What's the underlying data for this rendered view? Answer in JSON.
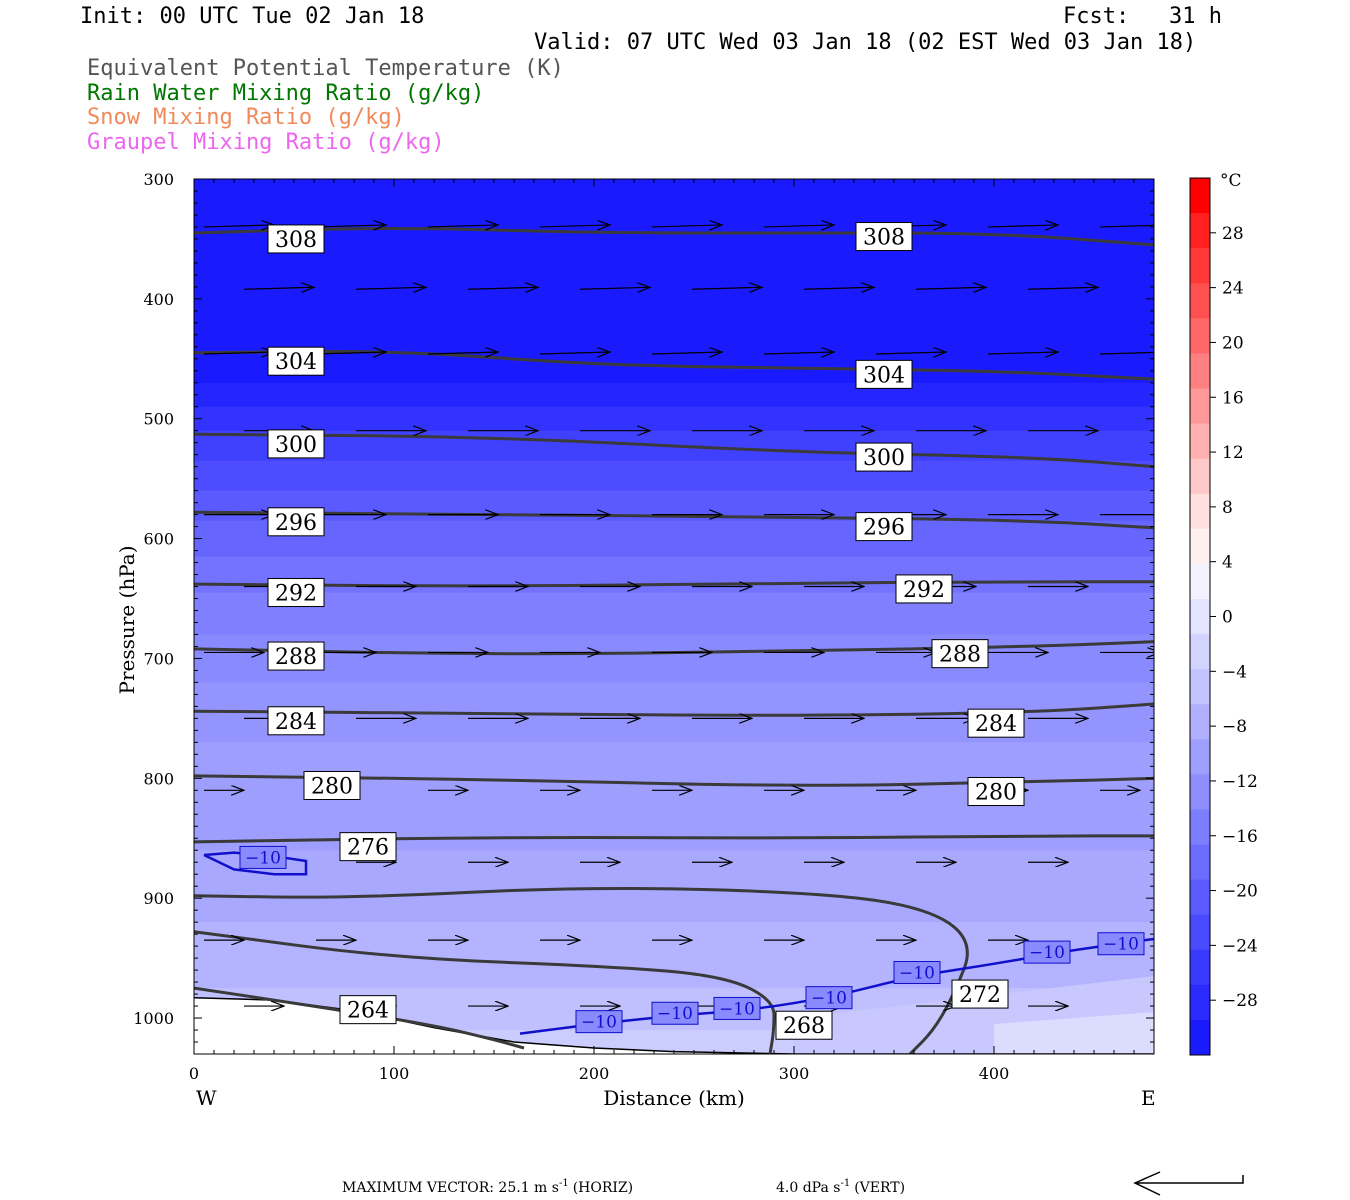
{
  "header": {
    "init": "Init: 00 UTC Tue 02 Jan 18",
    "fcst": "Fcst:   31 h",
    "valid": "Valid: 07 UTC Wed 03 Jan 18 (02 EST Wed 03 Jan 18)"
  },
  "legend_titles": [
    {
      "text": "Equivalent Potential Temperature (K)",
      "color": "#555555"
    },
    {
      "text": "Rain Water Mixing Ratio (g/kg)",
      "color": "#007700"
    },
    {
      "text": "Snow Mixing Ratio (g/kg)",
      "color": "#f08a5a"
    },
    {
      "text": "Graupel Mixing Ratio (g/kg)",
      "color": "#ee66ee"
    }
  ],
  "footer": {
    "max_vector": "MAXIMUM VECTOR:  25.1 m s",
    "horiz": "(HORIZ)",
    "vert_value": "4.0 dPa s",
    "vert": "(VERT)",
    "exp": "-1"
  },
  "chart_data": {
    "type": "contour",
    "xlabel": "Distance (km)",
    "ylabel": "Pressure (hPa)",
    "x_range": [
      0,
      480
    ],
    "y_range": [
      300,
      1030
    ],
    "x_ticks": [
      0,
      100,
      200,
      300,
      400
    ],
    "y_ticks": [
      300,
      400,
      500,
      600,
      700,
      800,
      900,
      1000
    ],
    "x_end_labels": {
      "left": "W",
      "right": "E"
    },
    "colorbar": {
      "unit": "°C",
      "tick_labels": [
        "28",
        "24",
        "20",
        "16",
        "12",
        "8",
        "4",
        "0",
        "−4",
        "−8",
        "−12",
        "−16",
        "−20",
        "−24",
        "−28"
      ],
      "colors": [
        "#1a1aff",
        "#2a2aff",
        "#3a3aff",
        "#4a4aff",
        "#5b5bff",
        "#6c6cff",
        "#7d7dff",
        "#8e8eff",
        "#9f9fff",
        "#b0b0ff",
        "#c2c2ff",
        "#d3d3ff",
        "#e4e4ff",
        "#f2f2ff",
        "#fff0f0",
        "#ffe0e0",
        "#ffc8c8",
        "#ffb0b0",
        "#ff9898",
        "#ff8080",
        "#ff6868",
        "#ff5050",
        "#ff3838",
        "#ff2020",
        "#ff0000"
      ]
    },
    "theta_e_contours": [
      {
        "label": "308",
        "points": [
          [
            0,
            345
          ],
          [
            100,
            340
          ],
          [
            200,
            345
          ],
          [
            300,
            345
          ],
          [
            400,
            345
          ],
          [
            480,
            355
          ]
        ]
      },
      {
        "label": "304",
        "points": [
          [
            0,
            445
          ],
          [
            100,
            443
          ],
          [
            200,
            455
          ],
          [
            300,
            458
          ],
          [
            400,
            460
          ],
          [
            480,
            467
          ]
        ]
      },
      {
        "label": "300",
        "points": [
          [
            0,
            513
          ],
          [
            150,
            515
          ],
          [
            300,
            528
          ],
          [
            420,
            532
          ],
          [
            480,
            540
          ]
        ]
      },
      {
        "label": "296",
        "points": [
          [
            0,
            578
          ],
          [
            150,
            580
          ],
          [
            300,
            582
          ],
          [
            420,
            585
          ],
          [
            480,
            591
          ]
        ]
      },
      {
        "label": "292",
        "points": [
          [
            0,
            638
          ],
          [
            150,
            640
          ],
          [
            300,
            637
          ],
          [
            420,
            636
          ],
          [
            480,
            636
          ]
        ]
      },
      {
        "label": "288",
        "points": [
          [
            0,
            692
          ],
          [
            150,
            697
          ],
          [
            300,
            694
          ],
          [
            420,
            690
          ],
          [
            480,
            686
          ]
        ]
      },
      {
        "label": "284",
        "points": [
          [
            0,
            744
          ],
          [
            150,
            746
          ],
          [
            300,
            748
          ],
          [
            420,
            745
          ],
          [
            480,
            738
          ]
        ]
      },
      {
        "label": "280",
        "points": [
          [
            0,
            798
          ],
          [
            150,
            801
          ],
          [
            300,
            807
          ],
          [
            420,
            803
          ],
          [
            480,
            800
          ]
        ]
      },
      {
        "label": "276",
        "points": [
          [
            0,
            853
          ],
          [
            150,
            849
          ],
          [
            300,
            850
          ],
          [
            420,
            848
          ],
          [
            480,
            848
          ]
        ]
      },
      {
        "label": "272",
        "points": [
          [
            0,
            898
          ],
          [
            80,
            900
          ],
          [
            200,
            890
          ],
          [
            320,
            896
          ],
          [
            370,
            910
          ],
          [
            390,
            938
          ],
          [
            380,
            980
          ],
          [
            370,
            1010
          ],
          [
            358,
            1030
          ]
        ]
      },
      {
        "label": "268",
        "points": [
          [
            0,
            928
          ],
          [
            100,
            950
          ],
          [
            210,
            957
          ],
          [
            265,
            965
          ],
          [
            290,
            985
          ],
          [
            290,
            1010
          ],
          [
            288,
            1030
          ]
        ]
      },
      {
        "label": "264",
        "points": [
          [
            0,
            975
          ],
          [
            60,
            990
          ],
          [
            120,
            1006
          ],
          [
            150,
            1018
          ],
          [
            165,
            1025
          ]
        ]
      }
    ],
    "contour_label_positions": [
      {
        "label": "308",
        "x": 38,
        "y": 350
      },
      {
        "label": "308",
        "x": 332,
        "y": 348
      },
      {
        "label": "304",
        "x": 38,
        "y": 452
      },
      {
        "label": "304",
        "x": 332,
        "y": 463
      },
      {
        "label": "300",
        "x": 38,
        "y": 521
      },
      {
        "label": "300",
        "x": 332,
        "y": 532
      },
      {
        "label": "296",
        "x": 38,
        "y": 586
      },
      {
        "label": "296",
        "x": 332,
        "y": 590
      },
      {
        "label": "292",
        "x": 38,
        "y": 645
      },
      {
        "label": "292",
        "x": 352,
        "y": 642
      },
      {
        "label": "288",
        "x": 38,
        "y": 698
      },
      {
        "label": "288",
        "x": 370,
        "y": 696
      },
      {
        "label": "284",
        "x": 38,
        "y": 752
      },
      {
        "label": "284",
        "x": 388,
        "y": 754
      },
      {
        "label": "280",
        "x": 56,
        "y": 806
      },
      {
        "label": "280",
        "x": 388,
        "y": 811
      },
      {
        "label": "276",
        "x": 74,
        "y": 857
      },
      {
        "label": "272",
        "x": 380,
        "y": 980
      },
      {
        "label": "268",
        "x": 292,
        "y": 1006
      },
      {
        "label": "264",
        "x": 74,
        "y": 993
      }
    ],
    "temperature_contour_-10": {
      "label": "−10",
      "points": [
        [
          163,
          1013
        ],
        [
          200,
          1005
        ],
        [
          240,
          998
        ],
        [
          280,
          993
        ],
        [
          320,
          982
        ],
        [
          360,
          965
        ],
        [
          400,
          955
        ],
        [
          440,
          943
        ],
        [
          480,
          934
        ]
      ],
      "loop": [
        [
          5,
          864
        ],
        [
          20,
          862
        ],
        [
          40,
          865
        ],
        [
          56,
          869
        ],
        [
          56,
          880
        ],
        [
          40,
          880
        ],
        [
          20,
          876
        ],
        [
          5,
          864
        ]
      ],
      "label_positions": [
        [
          202,
          1003
        ],
        [
          240,
          996
        ],
        [
          271,
          992
        ],
        [
          317,
          983
        ],
        [
          361,
          962
        ],
        [
          426,
          945
        ],
        [
          463,
          938
        ],
        [
          34,
          866
        ]
      ]
    },
    "terrain_pressure": [
      [
        0,
        983
      ],
      [
        40,
        985
      ],
      [
        80,
        994
      ],
      [
        120,
        1008
      ],
      [
        160,
        1020
      ],
      [
        200,
        1025
      ],
      [
        240,
        1028
      ],
      [
        300,
        1030
      ],
      [
        480,
        1030
      ]
    ],
    "wind_vectors_note": "horizontal wind vectors pointing east"
  }
}
